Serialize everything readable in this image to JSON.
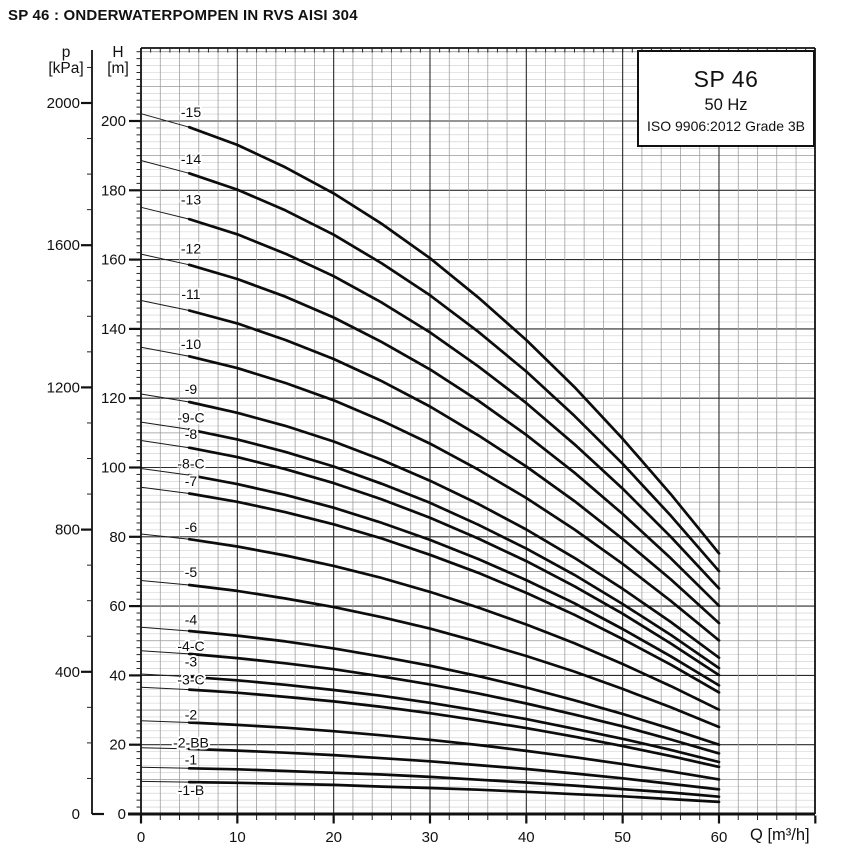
{
  "page_title": "SP 46 : ONDERWATERPOMPEN IN RVS AISI 304",
  "info_box": {
    "model": "SP 46",
    "frequency": "50 Hz",
    "standard": "ISO 9906:2012 Grade 3B"
  },
  "axes": {
    "pressure": {
      "symbol": "p",
      "unit": "[kPa]",
      "tick_labels": [
        0,
        400,
        800,
        1200,
        1600,
        2000
      ],
      "minor_step": 100,
      "max": 2100
    },
    "head": {
      "symbol": "H",
      "unit": "[m]",
      "tick_labels": [
        0,
        20,
        40,
        60,
        80,
        100,
        120,
        140,
        160,
        180,
        200
      ],
      "minor_step": 2,
      "major_step": 20,
      "max": 220
    },
    "flow": {
      "symbol": "Q",
      "unit": "[m³/h]",
      "tick_labels": [
        0,
        10,
        20,
        30,
        40,
        50,
        60
      ],
      "minor_step": 2,
      "major_step": 10,
      "max": 70
    }
  },
  "colors": {
    "curve": "#0c0c0c",
    "grid_minor": "#cdcdcd",
    "grid_mid": "#979797",
    "grid_major": "#2b2b2b",
    "axis": "#111111",
    "background": "#ffffff"
  },
  "chart_data": {
    "type": "line",
    "title": "SP 46 submersible pump performance curves (head vs flow)",
    "xlabel": "Q [m³/h]",
    "ylabel": "H [m]",
    "y2label": "p [kPa]",
    "xlim": [
      0,
      70
    ],
    "ylim": [
      0,
      221
    ],
    "grid": true,
    "legend_position": "top-right",
    "x": [
      0,
      5,
      10,
      15,
      20,
      25,
      30,
      35,
      40,
      45,
      50,
      55,
      60
    ],
    "series": [
      {
        "name": "-15",
        "label_h": 202.5,
        "values": [
          202.1,
          198.2,
          193.1,
          186.6,
          179.1,
          170.3,
          160.4,
          149.1,
          136.8,
          123.2,
          108.3,
          92.3,
          75.2
        ]
      },
      {
        "name": "-14",
        "label_h": 188.9,
        "values": [
          188.6,
          184.9,
          180.2,
          174.2,
          167.2,
          158.9,
          149.7,
          139.2,
          127.7,
          114.9,
          101.1,
          86.1,
          70.1
        ]
      },
      {
        "name": "-13",
        "label_h": 177.3,
        "values": [
          175.1,
          171.7,
          167.3,
          161.7,
          155.2,
          147.6,
          139.0,
          129.2,
          118.6,
          106.7,
          93.9,
          80.0,
          65.1
        ]
      },
      {
        "name": "-12",
        "label_h": 163.1,
        "values": [
          161.6,
          158.5,
          154.4,
          149.3,
          143.3,
          136.2,
          128.3,
          119.3,
          109.4,
          98.5,
          86.6,
          73.8,
          60.1
        ]
      },
      {
        "name": "-11",
        "label_h": 150.0,
        "values": [
          148.2,
          145.3,
          141.6,
          136.8,
          131.3,
          124.9,
          117.6,
          109.3,
          100.3,
          90.3,
          79.4,
          67.7,
          55.1
        ]
      },
      {
        "name": "-10",
        "label_h": 135.6,
        "values": [
          134.7,
          132.1,
          128.7,
          124.4,
          119.4,
          113.5,
          106.9,
          99.4,
          91.2,
          82.1,
          72.2,
          61.5,
          50.1
        ]
      },
      {
        "name": "-9",
        "label_h": 122.6,
        "values": [
          121.2,
          118.9,
          115.8,
          112.0,
          107.5,
          102.2,
          96.2,
          89.5,
          82.1,
          73.9,
          65.0,
          55.4,
          45.1
        ]
      },
      {
        "name": "-9-C",
        "label_h": 114.3,
        "values": [
          113.1,
          111.0,
          108.1,
          104.5,
          100.3,
          95.3,
          89.8,
          83.5,
          76.6,
          69.0,
          60.6,
          51.7,
          42.1
        ]
      },
      {
        "name": "-8",
        "label_h": 109.6,
        "values": [
          107.8,
          105.7,
          103.0,
          99.5,
          95.5,
          90.8,
          85.5,
          79.5,
          73.0,
          65.7,
          57.8,
          49.2,
          40.1
        ]
      },
      {
        "name": "-8-C",
        "label_h": 101.0,
        "values": [
          99.7,
          97.8,
          95.2,
          92.1,
          88.4,
          84.0,
          79.1,
          73.6,
          67.5,
          60.8,
          53.4,
          45.5,
          37.1
        ]
      },
      {
        "name": "-7",
        "label_h": 96.0,
        "values": [
          94.3,
          92.5,
          90.1,
          87.1,
          83.6,
          79.5,
          74.8,
          69.6,
          63.8,
          57.5,
          50.5,
          43.1,
          35.1
        ]
      },
      {
        "name": "-6",
        "label_h": 82.7,
        "values": [
          80.8,
          79.3,
          77.2,
          74.6,
          71.6,
          68.1,
          64.1,
          59.6,
          54.7,
          49.3,
          43.3,
          36.9,
          30.1
        ]
      },
      {
        "name": "-5",
        "label_h": 69.8,
        "values": [
          67.4,
          66.1,
          64.4,
          62.2,
          59.7,
          56.8,
          53.5,
          49.7,
          45.6,
          41.1,
          36.1,
          30.8,
          25.1
        ]
      },
      {
        "name": "-4",
        "label_h": 56.1,
        "values": [
          53.9,
          52.8,
          51.5,
          49.8,
          47.8,
          45.4,
          42.8,
          39.8,
          36.5,
          32.8,
          28.9,
          24.6,
          20.0
        ]
      },
      {
        "name": "-4-C",
        "label_h": 48.4,
        "values": [
          47.1,
          46.2,
          45.0,
          43.5,
          41.8,
          39.7,
          37.4,
          34.8,
          31.9,
          28.7,
          25.3,
          21.5,
          17.5
        ]
      },
      {
        "name": "-3",
        "label_h": 43.9,
        "values": [
          40.4,
          39.6,
          38.6,
          37.3,
          35.8,
          34.1,
          32.1,
          29.8,
          27.4,
          24.6,
          21.7,
          18.5,
          15.0
        ]
      },
      {
        "name": "-3-C",
        "label_h": 38.8,
        "values": [
          36.6,
          35.9,
          35.0,
          33.8,
          32.5,
          30.9,
          29.1,
          27.0,
          24.8,
          22.3,
          19.6,
          16.7,
          13.6
        ]
      },
      {
        "name": "-2",
        "label_h": 28.6,
        "values": [
          26.9,
          26.4,
          25.7,
          24.9,
          23.9,
          22.7,
          21.4,
          19.9,
          18.2,
          16.4,
          14.4,
          12.3,
          10.0
        ]
      },
      {
        "name": "-2-BB",
        "label_h": 20.6,
        "values": [
          19.1,
          18.8,
          18.3,
          17.7,
          17.0,
          16.1,
          15.2,
          14.1,
          13.0,
          11.7,
          10.3,
          8.7,
          7.1
        ]
      },
      {
        "name": "-1",
        "label_h": 15.6,
        "values": [
          13.5,
          13.2,
          12.9,
          12.4,
          11.9,
          11.4,
          10.7,
          9.9,
          9.1,
          8.2,
          7.2,
          6.2,
          5.0
        ]
      },
      {
        "name": "-1-B",
        "label_h": 6.9,
        "values": [
          9.4,
          9.2,
          9.0,
          8.7,
          8.4,
          7.9,
          7.5,
          7.0,
          6.4,
          5.7,
          5.1,
          4.3,
          3.5
        ]
      }
    ]
  }
}
